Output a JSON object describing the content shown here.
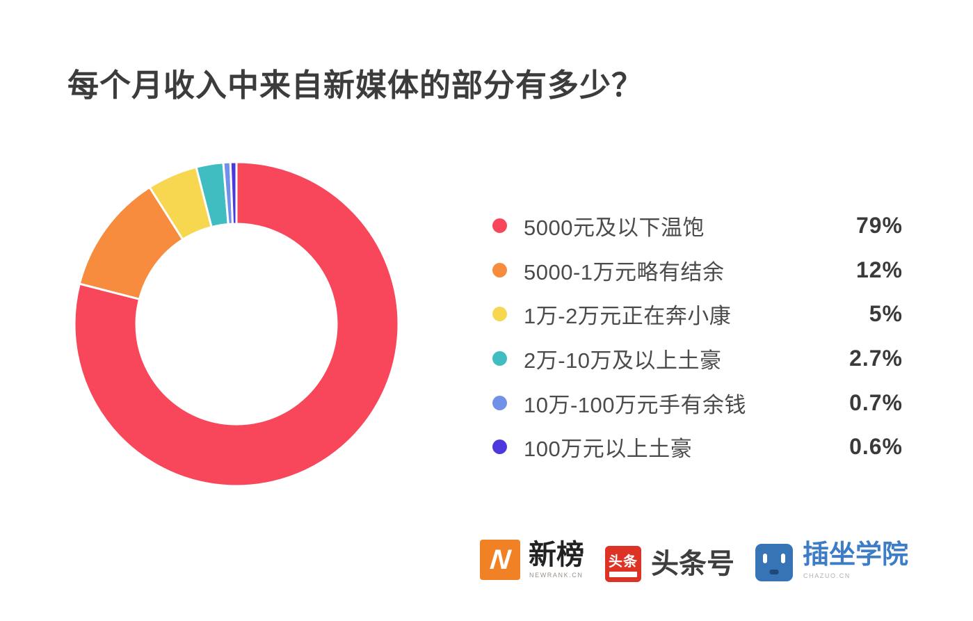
{
  "title": "每个月收入中来自新媒体的部分有多少？",
  "chart_data": {
    "type": "pie",
    "subtype": "donut",
    "title": "每个月收入中来自新媒体的部分有多少？",
    "categories": [
      "5000元及以下温饱",
      "5000-1万元略有结余",
      "1万-2万元正在奔小康",
      "2万-10万及以上土豪",
      "10万-100万元手有余钱",
      "100万元以上土豪"
    ],
    "values": [
      79,
      12,
      5,
      2.7,
      0.7,
      0.6
    ],
    "labels_display": [
      "79%",
      "12%",
      "5%",
      "2.7%",
      "0.7%",
      "0.6%"
    ],
    "colors": [
      "#F8475A",
      "#F78B3E",
      "#F6D74F",
      "#3FBDC1",
      "#7190E8",
      "#4C38DC"
    ],
    "start_angle_deg": 0,
    "direction": "clockwise",
    "inner_radius_ratio": 0.62,
    "legend_position": "right",
    "segment_gap_color": "#ffffff"
  },
  "legend": {
    "items": [
      {
        "label": "5000元及以下温饱",
        "value": "79%",
        "color": "#F8475A"
      },
      {
        "label": "5000-1万元略有结余",
        "value": "12%",
        "color": "#F78B3E"
      },
      {
        "label": "1万-2万元正在奔小康",
        "value": "5%",
        "color": "#F6D74F"
      },
      {
        "label": "2万-10万及以上土豪",
        "value": "2.7%",
        "color": "#3FBDC1"
      },
      {
        "label": "10万-100万元手有余钱",
        "value": "0.7%",
        "color": "#7190E8"
      },
      {
        "label": "100万元以上土豪",
        "value": "0.6%",
        "color": "#4C38DC"
      }
    ]
  },
  "footer": {
    "newrank": {
      "name": "新榜",
      "sub": "NEWRANK.CN",
      "badge_letter": "N",
      "badge_color": "#F08124"
    },
    "toutiao": {
      "name": "头条号",
      "badge_text": "头条",
      "badge_color": "#DD3226"
    },
    "chazuo": {
      "name": "插坐学院",
      "sub": "CHAZUO.CN",
      "badge_color": "#3674B5"
    }
  }
}
